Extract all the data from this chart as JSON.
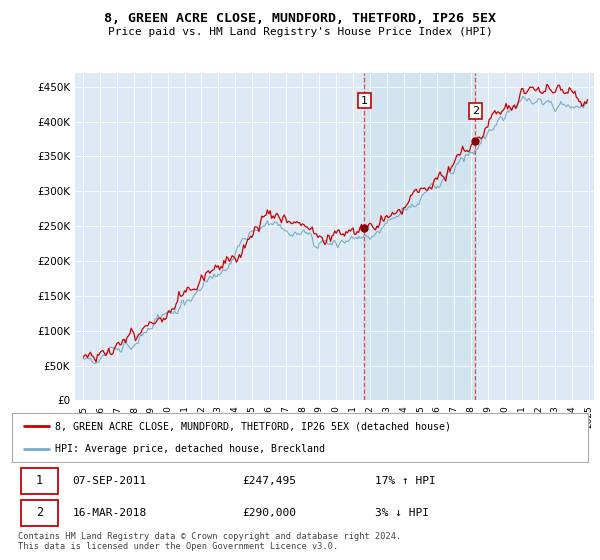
{
  "title": "8, GREEN ACRE CLOSE, MUNDFORD, THETFORD, IP26 5EX",
  "subtitle": "Price paid vs. HM Land Registry's House Price Index (HPI)",
  "ylabel_ticks": [
    "£0",
    "£50K",
    "£100K",
    "£150K",
    "£200K",
    "£250K",
    "£300K",
    "£350K",
    "£400K",
    "£450K"
  ],
  "ytick_values": [
    0,
    50000,
    100000,
    150000,
    200000,
    250000,
    300000,
    350000,
    400000,
    450000
  ],
  "ylim": [
    0,
    470000
  ],
  "red_line_color": "#cc0000",
  "blue_line_color": "#7aabcc",
  "shade_color": "#d0e4f0",
  "marker1_price": 247495,
  "marker2_price": 290000,
  "idx1": 200,
  "idx2": 279,
  "transaction1_date": "07-SEP-2011",
  "transaction1_label": "£247,495",
  "transaction1_hpi": "17% ↑ HPI",
  "transaction2_date": "16-MAR-2018",
  "transaction2_label": "£290,000",
  "transaction2_hpi": "3% ↓ HPI",
  "legend_red": "8, GREEN ACRE CLOSE, MUNDFORD, THETFORD, IP26 5EX (detached house)",
  "legend_blue": "HPI: Average price, detached house, Breckland",
  "footer": "Contains HM Land Registry data © Crown copyright and database right 2024.\nThis data is licensed under the Open Government Licence v3.0.",
  "background_color": "#ffffff",
  "plot_bg_color": "#ddeaf5"
}
